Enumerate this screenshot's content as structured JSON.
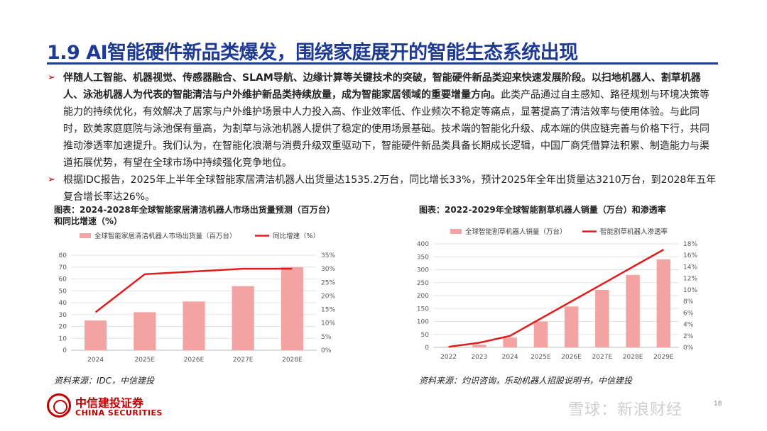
{
  "header": {
    "title": "1.9 AI智能硬件新品类爆发，围绕家庭展开的智能生态系统出现"
  },
  "bullets": [
    {
      "bold": "伴随人工智能、机器视觉、传感器融合、SLAM导航、边缘计算等关键技术的突破，智能硬件新品类迎来快速发展阶段。以扫地机器人、割草机器人、泳池机器人为代表的智能清洁与户外维护新品类持续放量，成为智能家居领域的重要增量方向。",
      "normal": "此类产品通过自主感知、路径规划与环境决策等能力的持续优化，有效解决了居家与户外维护场景中人力投入高、作业效率低、作业频次不稳定等痛点，显著提高了清洁效率与使用体验。与此同时，欧美家庭庭院与泳池保有量高，为割草与泳池机器人提供了稳定的使用场景基础。技术端的智能化升级、成本端的供应链完善与价格下行，共同推动渗透率加速提升。我们认为，在智能化浪潮与消费升级双重驱动下，智能硬件新品类具备长期成长逻辑，中国厂商凭借算法积累、制造能力与渠道拓展优势，有望在全球市场中持续强化竞争地位。"
    },
    {
      "bold": "",
      "normal": "根据IDC报告，2025年上半年全球智能家居清洁机器人出货量达1535.2万台，同比增长33%，预计2025年全年出货量达3210万台，到2028年五年复合增长率达26%。"
    }
  ],
  "chart_left": {
    "caption_line1": "图表：2024-2028年全球智能家居清洁机器人市场出货量预测（百万台）",
    "caption_line2": "和同比增速（%）",
    "source": "资料来源：IDC，中信建投"
  },
  "chart_right": {
    "caption": "图表：2022-2029年全球智能割草机器人销量（万台）和渗透率",
    "source": "资料来源：灼识咨询，乐动机器人招股说明书，中信建投"
  },
  "chart_data": [
    {
      "type": "bar",
      "categories": [
        "2024",
        "2025E",
        "2026E",
        "2027E",
        "2028E"
      ],
      "series": [
        {
          "name": "全球智能家居清洁机器人市场出货量（百万台）",
          "kind": "bar",
          "axis": "left",
          "values": [
            25,
            32,
            41,
            54,
            70
          ]
        },
        {
          "name": "同比增速（%）",
          "kind": "line",
          "axis": "right",
          "values": [
            14,
            28,
            29,
            30,
            30
          ]
        }
      ],
      "ylim_left": [
        0,
        80
      ],
      "yticks_left": [
        "0",
        "10",
        "20",
        "30",
        "40",
        "50",
        "60",
        "70",
        "80"
      ],
      "ylim_right": [
        0,
        35
      ],
      "yticks_right": [
        "0%",
        "5%",
        "10%",
        "15%",
        "20%",
        "25%",
        "30%",
        "35%"
      ],
      "colors": {
        "bar": "#f4a3a3",
        "line": "#e31b1b"
      },
      "grid": true,
      "legend": "top"
    },
    {
      "type": "bar",
      "categories": [
        "2022",
        "2023",
        "2024",
        "2025E",
        "2026E",
        "2027E",
        "2028E",
        "2029E"
      ],
      "series": [
        {
          "name": "全球智能割草机器人销量（万台）",
          "kind": "bar",
          "axis": "left",
          "values": [
            2,
            10,
            38,
            100,
            158,
            222,
            280,
            340
          ]
        },
        {
          "name": "智能割草机器人渗透率",
          "kind": "line",
          "axis": "right",
          "values": [
            0.1,
            0.8,
            2,
            5,
            8,
            11,
            14,
            17
          ]
        }
      ],
      "ylim_left": [
        0,
        400
      ],
      "yticks_left": [
        "0",
        "50",
        "100",
        "150",
        "200",
        "250",
        "300",
        "350",
        "400"
      ],
      "ylim_right": [
        0,
        18
      ],
      "yticks_right": [
        "0%",
        "2%",
        "4%",
        "6%",
        "8%",
        "10%",
        "12%",
        "14%",
        "16%",
        "18%"
      ],
      "colors": {
        "bar": "#f4a3a3",
        "line": "#e31b1b"
      },
      "grid": true,
      "legend": "top"
    }
  ],
  "footer": {
    "logo_cn": "中信建投证券",
    "logo_en": "CHINA SECURITIES",
    "page_number": "18",
    "watermark": "雪球：新浪财经"
  }
}
